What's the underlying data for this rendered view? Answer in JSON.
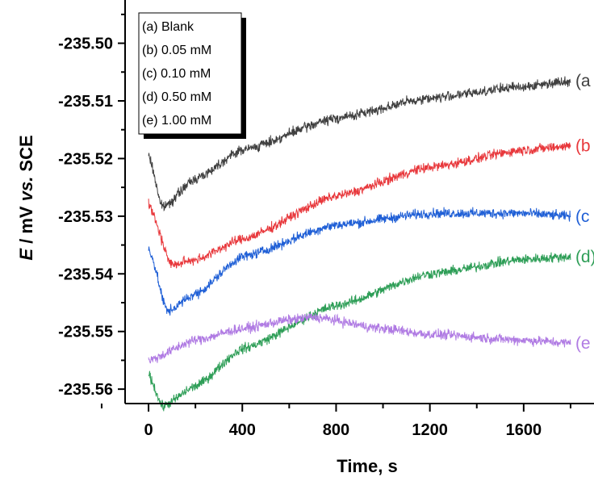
{
  "chart_data": {
    "type": "line",
    "title": "",
    "xlabel": "Time, s",
    "ylabel_parts": {
      "var": "E",
      "unit": " / mV ",
      "vs": "vs.",
      "ref": " SCE"
    },
    "xlim": [
      -100,
      1900
    ],
    "ylim": [
      -235.5625,
      -235.4925
    ],
    "x_ticks": [
      0,
      400,
      800,
      1200,
      1600
    ],
    "x_tick_labels": [
      "0",
      "400",
      "800",
      "1200",
      "1600"
    ],
    "y_ticks": [
      -235.56,
      -235.55,
      -235.54,
      -235.53,
      -235.52,
      -235.51,
      -235.5
    ],
    "y_tick_labels": [
      "-235.56",
      "-235.55",
      "-235.54",
      "-235.53",
      "-235.52",
      "-235.51",
      "-235.50"
    ],
    "legend_position": "top-left",
    "legend": [
      "(a) Blank",
      "(b) 0.05 mM",
      "(c) 0.10 mM",
      "(d) 0.50 mM",
      "(e) 1.00 mM"
    ],
    "series": [
      {
        "label": "(a",
        "color": "#404040",
        "x": [
          0,
          60,
          200,
          400,
          800,
          1200,
          1600,
          1800
        ],
        "y": [
          -235.5195,
          -235.5285,
          -235.5235,
          -235.5185,
          -235.513,
          -235.5095,
          -235.5075,
          -235.5065
        ]
      },
      {
        "label": "(b",
        "color": "#e8383c",
        "x": [
          0,
          100,
          200,
          400,
          800,
          1200,
          1600,
          1800
        ],
        "y": [
          -235.528,
          -235.5385,
          -235.5375,
          -235.534,
          -235.5265,
          -235.5215,
          -235.5185,
          -235.5178
        ]
      },
      {
        "label": "(c",
        "color": "#1f5fd6",
        "x": [
          0,
          80,
          200,
          400,
          800,
          1200,
          1600,
          1800
        ],
        "y": [
          -235.5355,
          -235.5465,
          -235.5435,
          -235.537,
          -235.5315,
          -235.5295,
          -235.5295,
          -235.53
        ]
      },
      {
        "label": "(d)",
        "color": "#2e9e57",
        "x": [
          0,
          60,
          200,
          400,
          800,
          1200,
          1600,
          1800
        ],
        "y": [
          -235.5575,
          -235.563,
          -235.5595,
          -235.553,
          -235.5455,
          -235.54,
          -235.5375,
          -235.537
        ]
      },
      {
        "label": "(e",
        "color": "#b07be3",
        "x": [
          0,
          200,
          400,
          600,
          700,
          1000,
          1200,
          1600,
          1800
        ],
        "y": [
          -235.555,
          -235.5515,
          -235.5495,
          -235.548,
          -235.5475,
          -235.5495,
          -235.5505,
          -235.5515,
          -235.552
        ]
      }
    ]
  }
}
